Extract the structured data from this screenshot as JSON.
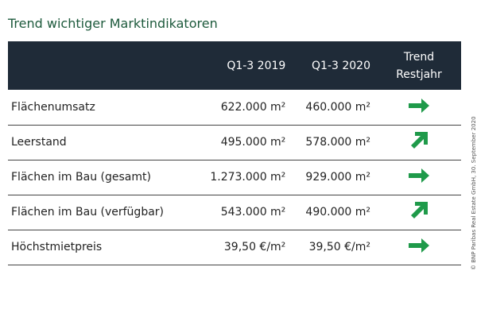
{
  "title": "Trend wichtiger Marktindikatoren",
  "table": {
    "header": [
      "Q1-3 2019",
      "Q1-3 2020",
      "Trend Restjahr"
    ],
    "rows": [
      [
        "Flächenumsatz",
        "622.000 m²",
        "460.000 m²"
      ],
      [
        "Leerstand",
        "495.000 m²",
        "578.000 m²"
      ],
      [
        "Flächen im Bau (gesamt)",
        "1.273.000 m²",
        "929.000 m²"
      ],
      [
        "Flächen im Bau (verfügbar)",
        "543.000 m²",
        "490.000 m²"
      ],
      [
        "Höchstmietpreis",
        "39,50 €/m²",
        "39,50 €/m²"
      ]
    ]
  },
  "credit": "© BNP Paribas Real Estate GmbH, 30. September 2020"
}
